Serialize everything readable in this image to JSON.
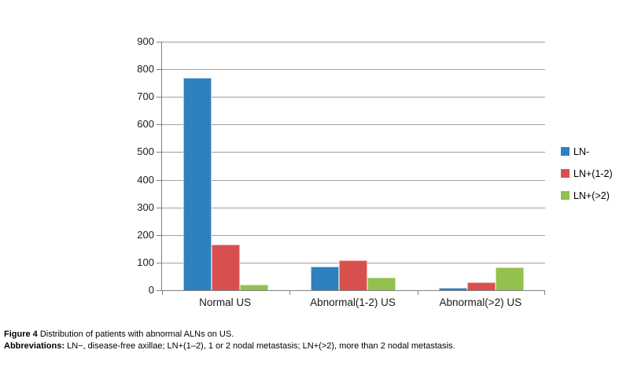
{
  "figure": {
    "caption": {
      "line1_bold": "Figure 4",
      "line1_text": " Distribution of patients with abnormal ALNs on US.",
      "line2_bold": "Abbreviations:",
      "line2_text": " LN−, disease-free axillae; LN+(1–2), 1 or 2 nodal metastasis; LN+(>2), more than 2 nodal metastasis."
    }
  },
  "chart_data": {
    "type": "bar",
    "title": "",
    "xlabel": "",
    "ylabel": "",
    "categories": [
      "Normal US",
      "Abnormal(1-2) US",
      "Abnormal(>2) US"
    ],
    "series": [
      {
        "name": "LN-",
        "color": "#2E81BD",
        "border_color": "#A9CBE6",
        "values": [
          770,
          85,
          8
        ]
      },
      {
        "name": "LN+(1-2)",
        "color": "#D8504D",
        "border_color": "#EFAFAE",
        "values": [
          165,
          108,
          28
        ]
      },
      {
        "name": "LN+(>2)",
        "color": "#94C04D",
        "border_color": "#CCE0A4",
        "values": [
          20,
          46,
          84
        ]
      }
    ],
    "ylim": [
      0,
      900
    ],
    "yticks": [
      0,
      100,
      200,
      300,
      400,
      500,
      600,
      700,
      800,
      900
    ],
    "grid": "horizontal",
    "legend_position": "right",
    "colors": {
      "gridline": "#A0A0A0",
      "axis": "#808080",
      "tick_text": "#1a1a1a",
      "background": "#ffffff"
    }
  }
}
